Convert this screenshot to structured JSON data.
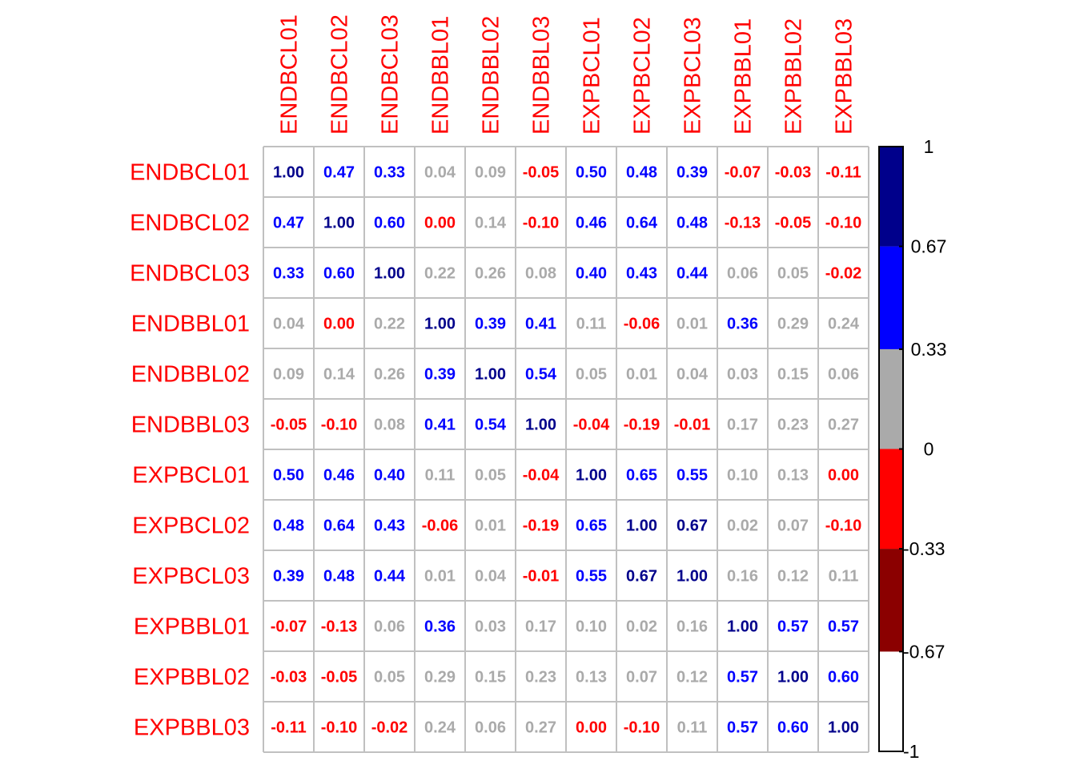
{
  "chart_data": {
    "type": "heatmap",
    "labels": [
      "ENDBCL01",
      "ENDBCL02",
      "ENDBCL03",
      "ENDBBL01",
      "ENDBBL02",
      "ENDBBL03",
      "EXPBCL01",
      "EXPBCL02",
      "EXPBCL03",
      "EXPBBL01",
      "EXPBBL02",
      "EXPBBL03"
    ],
    "matrix": [
      [
        1.0,
        0.47,
        0.33,
        0.04,
        0.09,
        -0.05,
        0.5,
        0.48,
        0.39,
        -0.07,
        -0.03,
        -0.11
      ],
      [
        0.47,
        1.0,
        0.6,
        0.0,
        0.14,
        -0.1,
        0.46,
        0.64,
        0.48,
        -0.13,
        -0.05,
        -0.1
      ],
      [
        0.33,
        0.6,
        1.0,
        0.22,
        0.26,
        0.08,
        0.4,
        0.43,
        0.44,
        0.06,
        0.05,
        -0.02
      ],
      [
        0.04,
        0.0,
        0.22,
        1.0,
        0.39,
        0.41,
        0.11,
        -0.06,
        0.01,
        0.36,
        0.29,
        0.24
      ],
      [
        0.09,
        0.14,
        0.26,
        0.39,
        1.0,
        0.54,
        0.05,
        0.01,
        0.04,
        0.03,
        0.15,
        0.06
      ],
      [
        -0.05,
        -0.1,
        0.08,
        0.41,
        0.54,
        1.0,
        -0.04,
        -0.19,
        -0.01,
        0.17,
        0.23,
        0.27
      ],
      [
        0.5,
        0.46,
        0.4,
        0.11,
        0.05,
        -0.04,
        1.0,
        0.65,
        0.55,
        0.1,
        0.13,
        0.0
      ],
      [
        0.48,
        0.64,
        0.43,
        -0.06,
        0.01,
        -0.19,
        0.65,
        1.0,
        0.67,
        0.02,
        0.07,
        -0.1
      ],
      [
        0.39,
        0.48,
        0.44,
        0.01,
        0.04,
        -0.01,
        0.55,
        0.67,
        1.0,
        0.16,
        0.12,
        0.11
      ],
      [
        -0.07,
        -0.13,
        0.06,
        0.36,
        0.03,
        0.17,
        0.1,
        0.02,
        0.16,
        1.0,
        0.57,
        0.57
      ],
      [
        -0.03,
        -0.05,
        0.05,
        0.29,
        0.15,
        0.23,
        0.13,
        0.07,
        0.12,
        0.57,
        1.0,
        0.6
      ],
      [
        -0.11,
        -0.1,
        -0.02,
        0.24,
        0.06,
        0.27,
        0.0,
        -0.1,
        0.11,
        0.57,
        0.6,
        1.0
      ]
    ],
    "value_format": "2 decimals",
    "zero_value_label_color": "#ff0000",
    "label_color": "#ff0000",
    "grid_color": "#c0c0c0",
    "colorbar": {
      "range": [
        -1,
        1
      ],
      "bins": [
        {
          "from": -1.0,
          "to": -0.67,
          "color": "#ffffff"
        },
        {
          "from": -0.67,
          "to": -0.33,
          "color": "#8b0000"
        },
        {
          "from": -0.33,
          "to": 0.0,
          "color": "#ff0000"
        },
        {
          "from": 0.0,
          "to": 0.33,
          "color": "#aaaaaa"
        },
        {
          "from": 0.33,
          "to": 0.67,
          "color": "#0000ff"
        },
        {
          "from": 0.67,
          "to": 1.0,
          "color": "#00008b"
        }
      ],
      "tick_labels": [
        "1",
        "0.67",
        "0.33",
        "0",
        "-0.33",
        "-0.67",
        "-1"
      ]
    }
  }
}
